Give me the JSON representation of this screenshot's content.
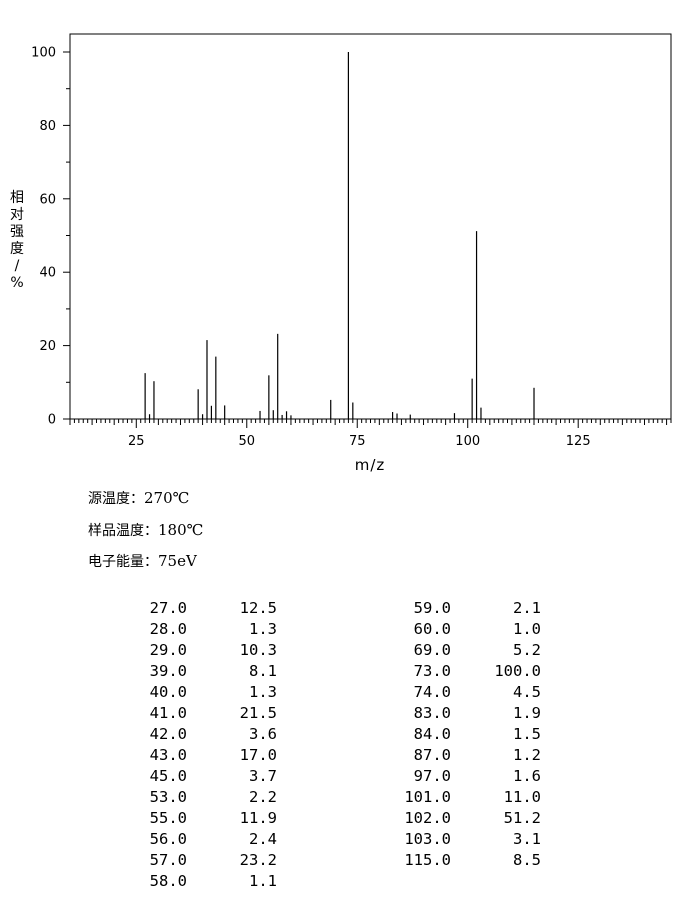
{
  "chart_data": {
    "type": "bar",
    "xlabel": "m/z",
    "ylabel": "相对强度/%",
    "xlim": [
      10,
      146
    ],
    "ylim": [
      0,
      100
    ],
    "x_ticks": [
      25,
      50,
      75,
      100,
      125
    ],
    "y_ticks": [
      0,
      20,
      40,
      60,
      80,
      100
    ],
    "series": [
      {
        "x": [
          27.0,
          28.0,
          29.0,
          39.0,
          40.0,
          41.0,
          42.0,
          43.0,
          45.0,
          53.0,
          55.0,
          56.0,
          57.0,
          58.0,
          59.0,
          60.0,
          69.0,
          73.0,
          74.0,
          83.0,
          84.0,
          87.0,
          97.0,
          101.0,
          102.0,
          103.0,
          115.0
        ],
        "values": [
          12.5,
          1.3,
          10.3,
          8.1,
          1.3,
          21.5,
          3.6,
          17.0,
          3.7,
          2.2,
          11.9,
          2.4,
          23.2,
          1.1,
          2.1,
          1.0,
          5.2,
          100.0,
          4.5,
          1.9,
          1.5,
          1.2,
          1.6,
          11.0,
          51.2,
          3.1,
          8.5
        ]
      }
    ]
  },
  "conditions": [
    {
      "label": "源温度：",
      "value": "270℃"
    },
    {
      "label": "样品温度：",
      "value": "180℃"
    },
    {
      "label": "电子能量：",
      "value": "75eV"
    }
  ],
  "peak_table": {
    "left": [
      [
        "27.0",
        "12.5"
      ],
      [
        "28.0",
        "1.3"
      ],
      [
        "29.0",
        "10.3"
      ],
      [
        "39.0",
        "8.1"
      ],
      [
        "40.0",
        "1.3"
      ],
      [
        "41.0",
        "21.5"
      ],
      [
        "42.0",
        "3.6"
      ],
      [
        "43.0",
        "17.0"
      ],
      [
        "45.0",
        "3.7"
      ],
      [
        "53.0",
        "2.2"
      ],
      [
        "55.0",
        "11.9"
      ],
      [
        "56.0",
        "2.4"
      ],
      [
        "57.0",
        "23.2"
      ],
      [
        "58.0",
        "1.1"
      ]
    ],
    "right": [
      [
        "59.0",
        "2.1"
      ],
      [
        "60.0",
        "1.0"
      ],
      [
        "69.0",
        "5.2"
      ],
      [
        "73.0",
        "100.0"
      ],
      [
        "74.0",
        "4.5"
      ],
      [
        "83.0",
        "1.9"
      ],
      [
        "84.0",
        "1.5"
      ],
      [
        "87.0",
        "1.2"
      ],
      [
        "97.0",
        "1.6"
      ],
      [
        "101.0",
        "11.0"
      ],
      [
        "102.0",
        "51.2"
      ],
      [
        "103.0",
        "3.1"
      ],
      [
        "115.0",
        "8.5"
      ]
    ]
  }
}
